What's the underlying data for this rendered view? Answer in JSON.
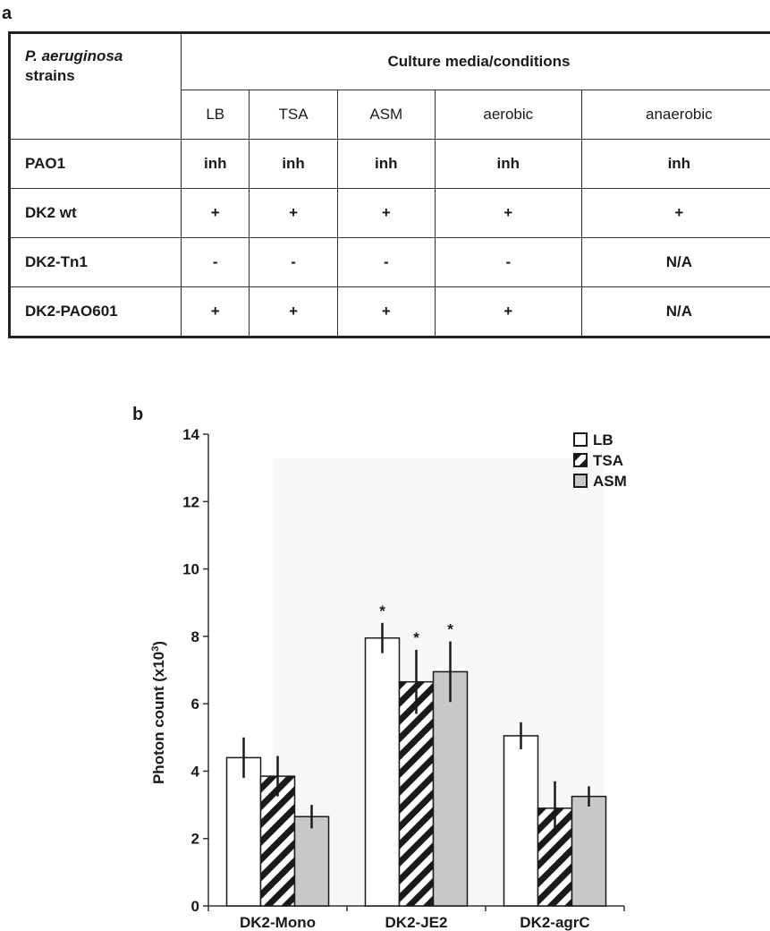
{
  "panel_a_label": "a",
  "panel_b_label": "b",
  "table": {
    "strain_header_italic": "P. aeruginosa",
    "strain_header_rest": "strains",
    "media_header": "Culture media/conditions",
    "columns": [
      "LB",
      "TSA",
      "ASM",
      "aerobic",
      "anaerobic"
    ],
    "rows": [
      {
        "strain": "PAO1",
        "values": [
          "inh",
          "inh",
          "inh",
          "inh",
          "inh"
        ]
      },
      {
        "strain": "DK2 wt",
        "values": [
          "+",
          "+",
          "+",
          "+",
          "+"
        ]
      },
      {
        "strain": "DK2-Tn1",
        "values": [
          "-",
          "-",
          "-",
          "-",
          "N/A"
        ]
      },
      {
        "strain": "DK2-PAO601",
        "values": [
          "+",
          "+",
          "+",
          "+",
          "N/A"
        ]
      }
    ]
  },
  "chart_data": {
    "type": "bar",
    "ylabel": "Photon count (x10",
    "ylabel_sup": "3",
    "ylabel_end": ")",
    "ylim": [
      0,
      14
    ],
    "yticks": [
      0,
      2,
      4,
      6,
      8,
      10,
      12,
      14
    ],
    "categories": [
      "DK2-Mono",
      "DK2-JE2",
      "DK2-agrC"
    ],
    "legend_position": "top-right",
    "series": [
      {
        "name": "LB",
        "fill": "#ffffff",
        "pattern": "none",
        "values": [
          4.4,
          7.95,
          5.05
        ],
        "errors": [
          0.6,
          0.45,
          0.4
        ],
        "significant": [
          false,
          true,
          false
        ]
      },
      {
        "name": "TSA",
        "fill": "#ffffff",
        "pattern": "hatch",
        "values": [
          3.85,
          6.65,
          2.9
        ],
        "errors": [
          0.6,
          0.95,
          0.8
        ],
        "significant": [
          false,
          true,
          false
        ]
      },
      {
        "name": "ASM",
        "fill": "#c8c8c8",
        "pattern": "none",
        "values": [
          2.65,
          6.95,
          3.25
        ],
        "errors": [
          0.35,
          0.9,
          0.3
        ],
        "significant": [
          false,
          true,
          false
        ]
      }
    ],
    "significance_marker": "*"
  }
}
